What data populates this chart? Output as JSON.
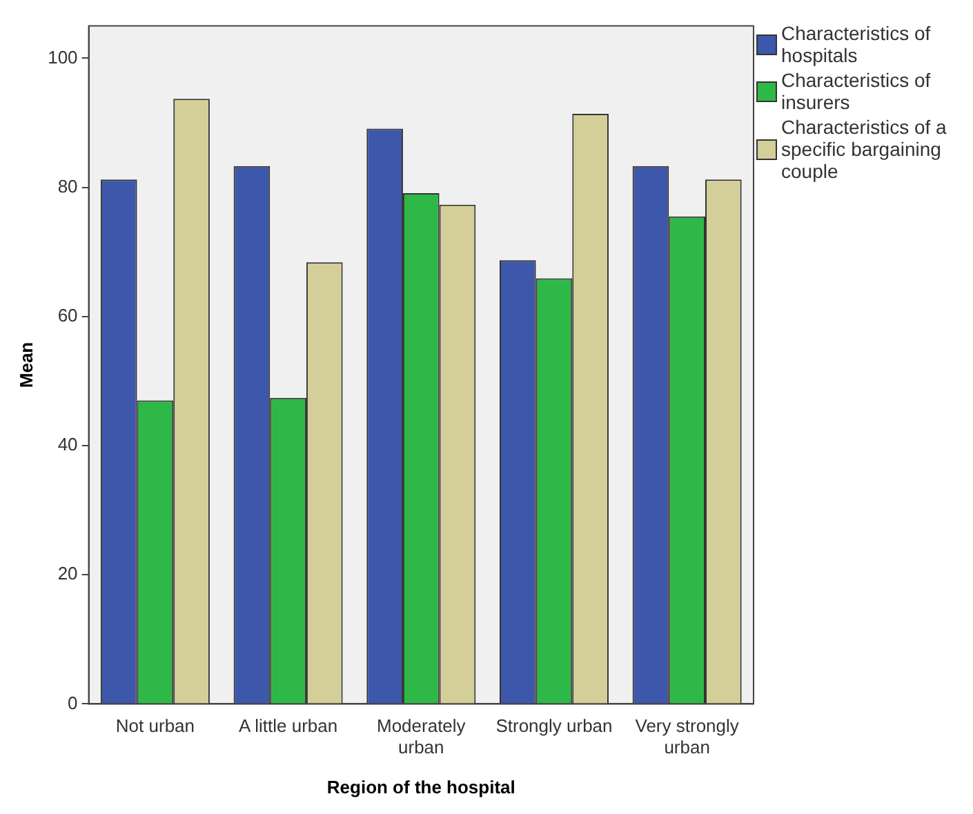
{
  "chart_data": {
    "type": "bar",
    "xlabel": "Region of the hospital",
    "ylabel": "Mean",
    "categories": [
      "Not urban",
      "A little urban",
      "Moderately urban",
      "Strongly urban",
      "Very strongly urban"
    ],
    "series": [
      {
        "name": "Characteristics of hospitals",
        "color": "#3d57aa",
        "values": [
          81.2,
          83.3,
          89.1,
          68.7,
          83.3
        ]
      },
      {
        "name": "Characteristics of insurers",
        "color": "#2eb847",
        "values": [
          47.0,
          47.4,
          79.1,
          65.9,
          75.5
        ]
      },
      {
        "name": "Characteristics of a specific bargaining couple",
        "color": "#d4cf98",
        "values": [
          93.7,
          68.4,
          77.3,
          91.4,
          81.2
        ]
      }
    ],
    "ylim": [
      0,
      105
    ],
    "yticks": [
      0,
      20,
      40,
      60,
      80,
      100
    ],
    "grid": false,
    "legend": "right"
  }
}
